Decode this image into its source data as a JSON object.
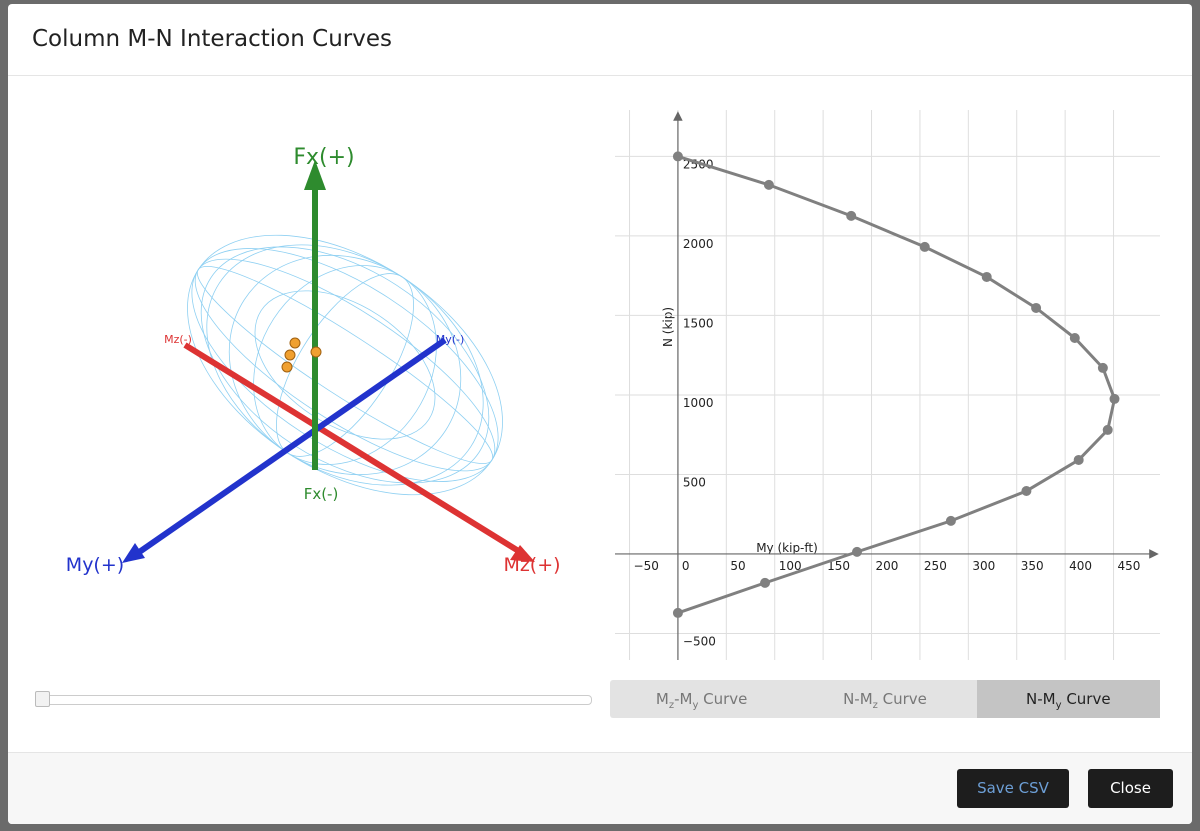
{
  "dialog": {
    "title": "Column M-N Interaction Curves"
  },
  "plot_3d": {
    "labels": {
      "fx_pos": "Fx(+)",
      "fx_neg": "Fx(-)",
      "my_pos": "My(+)",
      "my_neg": "My(-)",
      "mz_pos": "Mz(+)",
      "mz_neg": "Mz(-)"
    }
  },
  "chart_data": {
    "type": "line",
    "x_label": "My (kip-ft)",
    "y_label": "N (kip)",
    "x": [
      0,
      94,
      179,
      255,
      319,
      370,
      410,
      439,
      451,
      444,
      414,
      360,
      282,
      185,
      90,
      0
    ],
    "series": [
      {
        "color": "#808080",
        "values": [
          2500,
          2321,
          2126,
          1931,
          1742,
          1547,
          1358,
          1170,
          975,
          780,
          591,
          396,
          208,
          13,
          -182,
          -371
        ]
      }
    ],
    "xlim": [
      -65,
      498
    ],
    "ylim": [
      -667,
      2792
    ],
    "xticks": [
      {
        "value": -50,
        "label": "−50"
      },
      0,
      50,
      100,
      150,
      200,
      250,
      300,
      350,
      400,
      450
    ],
    "yticks": [
      {
        "value": -500,
        "label": "−500"
      },
      500,
      1000,
      1500,
      2000,
      2500
    ],
    "grid": true
  },
  "tabs": [
    {
      "parts": [
        "M",
        "z",
        "-M",
        "y",
        " Curve"
      ],
      "active": false
    },
    {
      "parts": [
        "N-M",
        "z",
        " Curve"
      ],
      "active": false
    },
    {
      "parts": [
        "N-M",
        "y",
        " Curve"
      ],
      "active": true
    }
  ],
  "buttons": {
    "save": "Save CSV",
    "close": "Close"
  }
}
